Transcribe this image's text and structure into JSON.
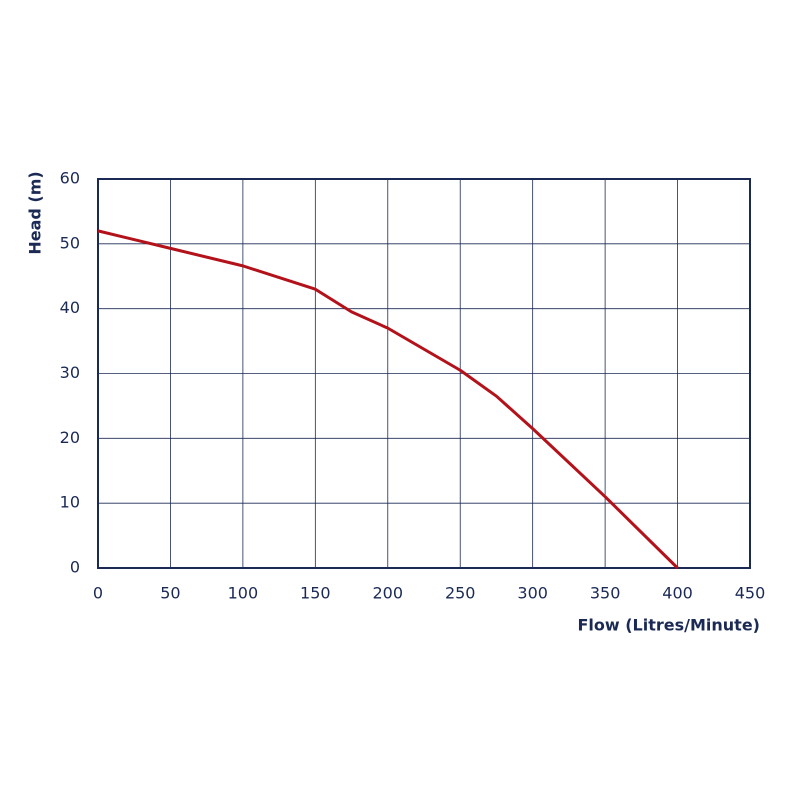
{
  "chart_data": {
    "type": "line",
    "x_label": "Flow (Litres/Minute)",
    "y_label": "Head (m)",
    "x": [
      0,
      50,
      100,
      150,
      175,
      200,
      250,
      275,
      300,
      350,
      400
    ],
    "series": [
      {
        "color": "#b3121a",
        "values": [
          52,
          49.3,
          46.6,
          43,
          39.5,
          37,
          30.5,
          26.5,
          21.5,
          11,
          0
        ]
      }
    ],
    "xlim": [
      0,
      450
    ],
    "xticks": [
      0,
      50,
      100,
      150,
      200,
      250,
      300,
      350,
      400,
      450
    ],
    "ylim": [
      0,
      60
    ],
    "yticks": [
      0,
      10,
      20,
      30,
      40,
      50,
      60
    ],
    "grid": true
  }
}
